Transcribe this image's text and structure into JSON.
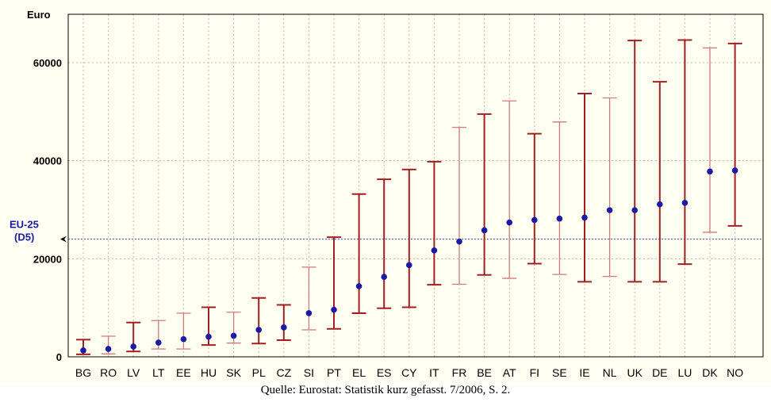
{
  "caption": "Quelle: Eurostat: Statistik kurz gefasst. 7/2006, S. 2.",
  "chart_data": {
    "type": "errorbar",
    "ylabel": "Euro",
    "ylim": [
      0,
      70000
    ],
    "yticks": [
      0,
      20000,
      40000,
      60000
    ],
    "grid": true,
    "categories": [
      "BG",
      "RO",
      "LV",
      "LT",
      "EE",
      "HU",
      "SK",
      "PL",
      "CZ",
      "SI",
      "PT",
      "EL",
      "ES",
      "CY",
      "IT",
      "FR",
      "BE",
      "AT",
      "FI",
      "SE",
      "IE",
      "NL",
      "UK",
      "DE",
      "LU",
      "DK",
      "NO"
    ],
    "median": [
      1300,
      1600,
      2100,
      2900,
      3600,
      4100,
      4300,
      5500,
      6000,
      8900,
      9600,
      14400,
      16300,
      18700,
      21700,
      23500,
      25800,
      27400,
      27900,
      28200,
      28400,
      29900,
      29900,
      31100,
      31400,
      37800,
      38000
    ],
    "low": [
      500,
      600,
      1100,
      1600,
      1600,
      2400,
      2800,
      2700,
      3400,
      5500,
      5700,
      8900,
      9900,
      10100,
      14700,
      14800,
      16700,
      16000,
      19000,
      16800,
      15300,
      16400,
      15300,
      15300,
      18900,
      25400,
      26700
    ],
    "high": [
      3500,
      4200,
      7000,
      7400,
      8900,
      10100,
      9100,
      12000,
      10600,
      18300,
      24400,
      33200,
      36200,
      38200,
      39800,
      46800,
      49500,
      52200,
      45500,
      47900,
      53700,
      52800,
      64500,
      56100,
      64600,
      63000,
      63900
    ],
    "bar_colors": [
      "#a02020",
      "#d07a7a",
      "#a02020",
      "#d07a7a",
      "#d07a7a",
      "#a02020",
      "#d07a7a",
      "#a02020",
      "#a02020",
      "#d07a7a",
      "#a02020",
      "#a02020",
      "#a02020",
      "#a02020",
      "#a02020",
      "#d07a7a",
      "#a02020",
      "#d07a7a",
      "#a02020",
      "#d07a7a",
      "#a02020",
      "#d07a7a",
      "#a02020",
      "#a02020",
      "#a02020",
      "#d07a7a",
      "#a02020"
    ],
    "point_color": "#1a1aa6",
    "reference_line": {
      "value": 24000,
      "label_line1": "EU-25",
      "label_line2": "(D5)",
      "color": "#4a4ad0"
    }
  }
}
